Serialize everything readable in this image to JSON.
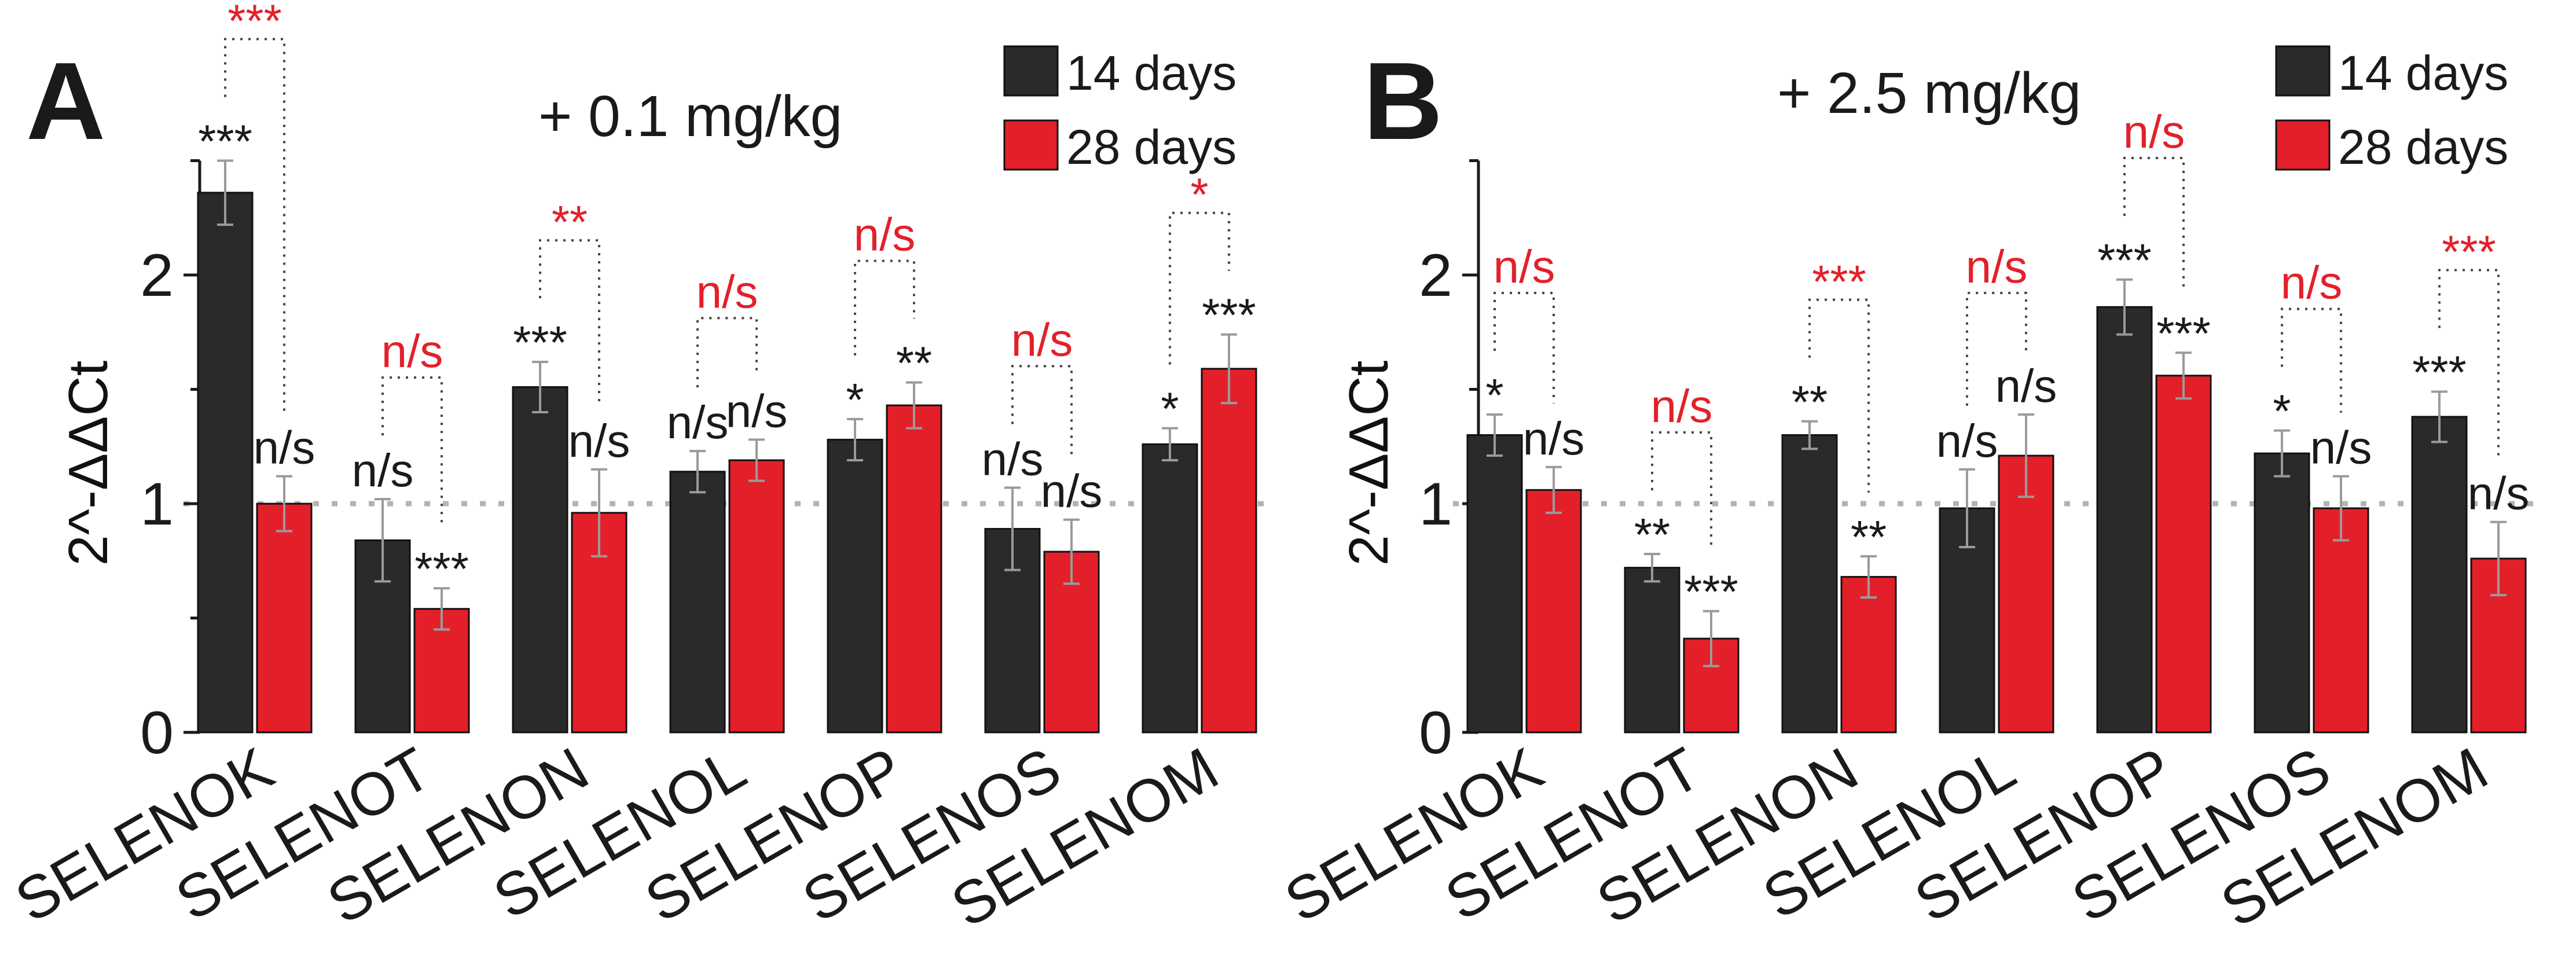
{
  "colors": {
    "series_14": "#2a2a2a",
    "series_28": "#e3202a",
    "stars_black": "#1a1a1a",
    "stars_red": "#e3202a",
    "axis": "#1a1a1a",
    "errorbar": "#9a9a9a",
    "reference_line": "#b3b3b3"
  },
  "chart_data": [
    {
      "panel": "A",
      "type": "bar",
      "title": "+ 0.1 mg/kg",
      "ylabel": "2^-ΔΔCt",
      "xlabel": "",
      "ylim": [
        0,
        2.5
      ],
      "yticks": [
        0,
        1,
        2
      ],
      "ytick_labels": [
        "0",
        "1",
        "2"
      ],
      "reference_line": 1,
      "legend_position": "top-right",
      "categories": [
        "SELENOK",
        "SELENOT",
        "SELENON",
        "SELENOL",
        "SELENOP",
        "SELENOS",
        "SELENOM"
      ],
      "series": [
        {
          "name": "14 days",
          "values": [
            2.36,
            0.84,
            1.51,
            1.14,
            1.28,
            0.89,
            1.26
          ],
          "errors": [
            0.14,
            0.18,
            0.11,
            0.09,
            0.09,
            0.18,
            0.07
          ],
          "labels": [
            "***",
            "n/s",
            "***",
            "n/s",
            "*",
            "n/s",
            "*"
          ]
        },
        {
          "name": "28 days",
          "values": [
            1.0,
            0.54,
            0.96,
            1.19,
            1.43,
            0.79,
            1.59
          ],
          "errors": [
            0.12,
            0.09,
            0.19,
            0.09,
            0.1,
            0.14,
            0.15
          ],
          "labels": [
            "n/s",
            "***",
            "n/s",
            "n/s",
            "**",
            "n/s",
            "***"
          ]
        }
      ],
      "comparisons": [
        "***",
        "n/s",
        "**",
        "n/s",
        "n/s",
        "n/s",
        "*"
      ]
    },
    {
      "panel": "B",
      "type": "bar",
      "title": "+ 2.5 mg/kg",
      "ylabel": "2^-ΔΔCt",
      "xlabel": "",
      "ylim": [
        0,
        2.5
      ],
      "yticks": [
        0,
        1,
        2
      ],
      "ytick_labels": [
        "0",
        "1",
        "2"
      ],
      "reference_line": 1,
      "legend_position": "top-right",
      "categories": [
        "SELENOK",
        "SELENOT",
        "SELENON",
        "SELENOL",
        "SELENOP",
        "SELENOS",
        "SELENOM"
      ],
      "series": [
        {
          "name": "14 days",
          "values": [
            1.3,
            0.72,
            1.3,
            0.98,
            1.86,
            1.22,
            1.38
          ],
          "errors": [
            0.09,
            0.06,
            0.06,
            0.17,
            0.12,
            0.1,
            0.11
          ],
          "labels": [
            "*",
            "**",
            "**",
            "n/s",
            "***",
            "*",
            "***"
          ]
        },
        {
          "name": "28 days",
          "values": [
            1.06,
            0.41,
            0.68,
            1.21,
            1.56,
            0.98,
            0.76
          ],
          "errors": [
            0.1,
            0.12,
            0.09,
            0.18,
            0.1,
            0.14,
            0.16
          ],
          "labels": [
            "n/s",
            "***",
            "**",
            "n/s",
            "***",
            "n/s",
            "n/s"
          ]
        }
      ],
      "comparisons": [
        "n/s",
        "n/s",
        "***",
        "n/s",
        "n/s",
        "n/s",
        "***"
      ]
    }
  ]
}
